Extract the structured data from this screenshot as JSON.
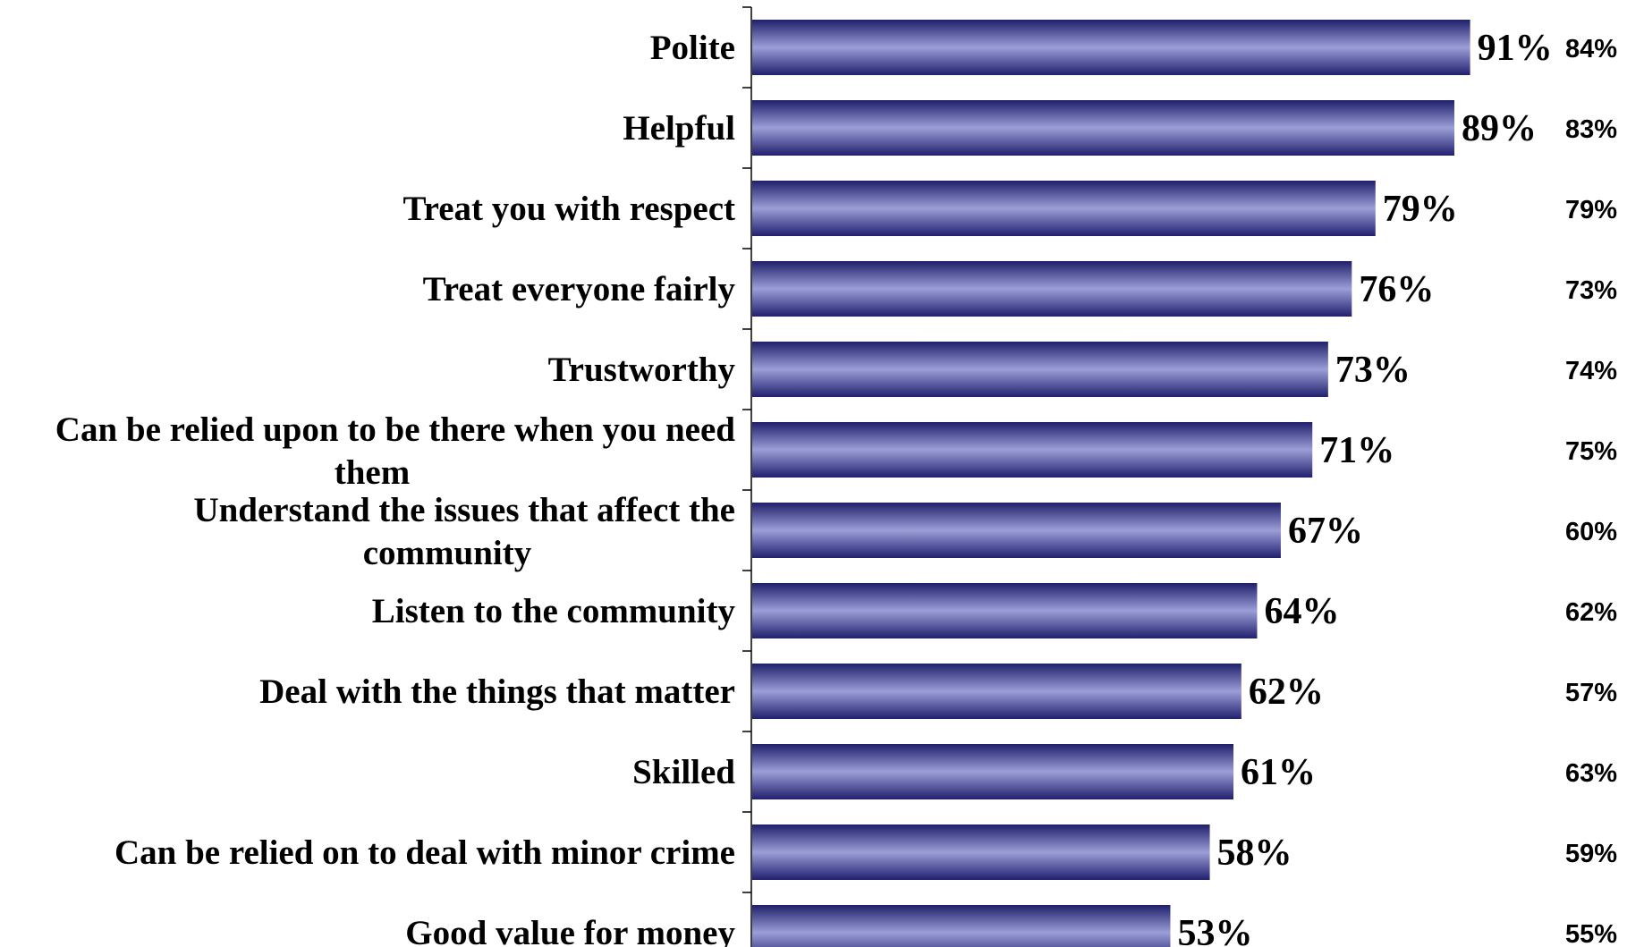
{
  "chart_data": {
    "type": "bar",
    "orientation": "horizontal",
    "categories": [
      "Polite",
      "Helpful",
      "Treat you with respect",
      "Treat everyone fairly",
      "Trustworthy",
      "Can be relied upon to be there when you need them",
      "Understand the issues that affect the community",
      "Listen to the community",
      "Deal with the things that matter",
      "Skilled",
      "Can be relied on to deal with minor crime",
      "Good value for money"
    ],
    "category_lines": [
      [
        "Polite"
      ],
      [
        "Helpful"
      ],
      [
        "Treat you with respect"
      ],
      [
        "Treat everyone fairly"
      ],
      [
        "Trustworthy"
      ],
      [
        "Can be relied upon to be there when you need",
        "them"
      ],
      [
        "Understand the issues that affect the",
        "community"
      ],
      [
        "Listen to the community"
      ],
      [
        "Deal with the things that matter"
      ],
      [
        "Skilled"
      ],
      [
        "Can be relied on to deal with minor crime"
      ],
      [
        "Good value for money"
      ]
    ],
    "series": [
      {
        "values": [
          91,
          89,
          79,
          76,
          73,
          71,
          67,
          64,
          62,
          61,
          58,
          53
        ],
        "labels": [
          "91%",
          "89%",
          "79%",
          "76%",
          "73%",
          "71%",
          "67%",
          "64%",
          "62%",
          "61%",
          "58%",
          "53%"
        ],
        "color": "#2a2a7a"
      },
      {
        "values": [
          84,
          83,
          79,
          73,
          74,
          75,
          60,
          62,
          57,
          63,
          59,
          55
        ],
        "labels": [
          "84%",
          "83%",
          "79%",
          "73%",
          "74%",
          "75%",
          "60%",
          "62%",
          "57%",
          "63%",
          "59%",
          "55%"
        ],
        "display": "text-column"
      }
    ],
    "xlim": [
      0,
      100
    ],
    "title": "",
    "xlabel": "",
    "ylabel": "",
    "grid": false,
    "legend": "none",
    "bar_gradient": [
      "#1f1f6b",
      "#9c9ed8",
      "#20206e"
    ]
  }
}
